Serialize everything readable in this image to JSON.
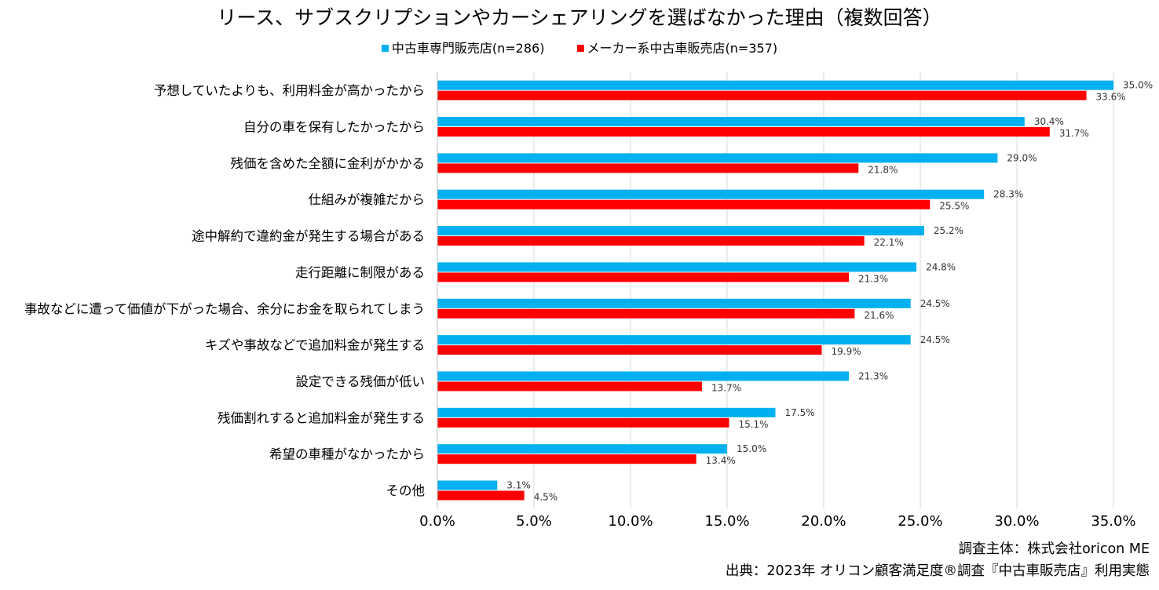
{
  "chart_data": {
    "type": "bar",
    "orientation": "horizontal",
    "title": "リース、サブスクリプションやカーシェアリングを選ばなかった理由（複数回答）",
    "categories": [
      "予想していたよりも、利用料金が高かったから",
      "自分の車を保有したかったから",
      "残価を含めた全額に金利がかかる",
      "仕組みが複雑だから",
      "途中解約で違約金が発生する場合がある",
      "走行距離に制限がある",
      "事故などに遭って価値が下がった場合、余分にお金を取られてしまう",
      "キズや事故などで追加料金が発生する",
      "設定できる残価が低い",
      "残価割れすると追加料金が発生する",
      "希望の車種がなかったから",
      "その他"
    ],
    "series": [
      {
        "name": "中古車専門販売店(n=286)",
        "color": "#00B0F0",
        "values": [
          35.0,
          30.4,
          29.0,
          28.3,
          25.2,
          24.8,
          24.5,
          24.5,
          21.3,
          17.5,
          15.0,
          3.1
        ],
        "labels": [
          "35.0%",
          "30.4%",
          "29.0%",
          "28.3%",
          "25.2%",
          "24.8%",
          "24.5%",
          "24.5%",
          "21.3%",
          "17.5%",
          "15.0%",
          "3.1%"
        ]
      },
      {
        "name": "メーカー系中古車販売店(n=357)",
        "color": "#FF0000",
        "values": [
          33.6,
          31.7,
          21.8,
          25.5,
          22.1,
          21.3,
          21.6,
          19.9,
          13.7,
          15.1,
          13.4,
          4.5
        ],
        "labels": [
          "33.6%",
          "31.7%",
          "21.8%",
          "25.5%",
          "22.1%",
          "21.3%",
          "21.6%",
          "19.9%",
          "13.7%",
          "15.1%",
          "13.4%",
          "4.5%"
        ]
      }
    ],
    "xlim": [
      0,
      35
    ],
    "xticks": [
      0,
      5,
      10,
      15,
      20,
      25,
      30,
      35
    ],
    "xtick_labels": [
      "0.0%",
      "5.0%",
      "10.0%",
      "15.0%",
      "20.0%",
      "25.0%",
      "30.0%",
      "35.0%"
    ],
    "grid": true,
    "legend_position": "top"
  },
  "source": {
    "line1": "調査主体：株式会社oricon ME",
    "line2": "出典：2023年 オリコン顧客満足度®調査『中古車販売店』利用実態"
  }
}
